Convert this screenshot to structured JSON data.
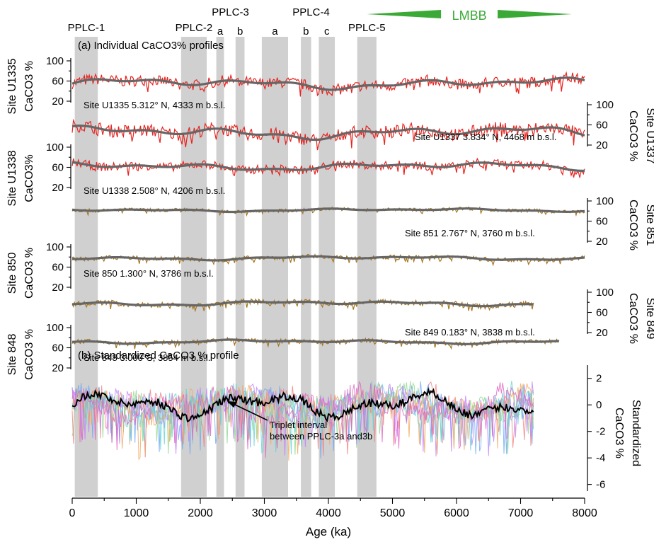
{
  "chart_data": {
    "type": "line",
    "x_axis": {
      "label": "Age (ka)",
      "range": [
        0,
        8000
      ],
      "ticks": [
        0,
        1000,
        2000,
        3000,
        4000,
        5000,
        6000,
        7000,
        8000
      ],
      "tick_labels": [
        "0",
        "1000",
        "2000",
        "3000",
        "4000",
        "5000",
        "6000",
        "7000",
        "8000"
      ]
    },
    "shaded_intervals": [
      {
        "label": "PPLC-1",
        "start": 40,
        "end": 400
      },
      {
        "label": "PPLC-2",
        "start": 1700,
        "end": 2100
      },
      {
        "label": "a",
        "start": 2250,
        "end": 2370
      },
      {
        "label": "b",
        "start": 2550,
        "end": 2690
      },
      {
        "label": "a",
        "start": 2960,
        "end": 3370
      },
      {
        "label": "b",
        "start": 3570,
        "end": 3730
      },
      {
        "label": "c",
        "start": 3850,
        "end": 4100
      },
      {
        "label": "PPLC-5",
        "start": 4450,
        "end": 4750
      }
    ],
    "group_labels": [
      {
        "text": "PPLC-3",
        "center": 2470
      },
      {
        "text": "PPLC-4",
        "center": 3730
      }
    ],
    "lmbb": {
      "label": "LMBB",
      "start": 4600,
      "end": 7800,
      "color": "#3aa935"
    },
    "panel_a_label": "(a) Individual CaCO3% profiles",
    "panel_b_label": "(b) Standardized CaCO3 % profile",
    "series": [
      {
        "name": "Site U1335",
        "axis_title": "Site U1335",
        "axis_unit": "CaCO3 %",
        "axis_side": "left",
        "yticks": [
          "20",
          "60",
          "100"
        ],
        "ylim": [
          20,
          100
        ],
        "color": "#e8231f",
        "smooth_color": "#666666",
        "x_end": 8000,
        "info": "Site U1335 5.312° N, 4333 m b.s.l.",
        "approx_mean": 55,
        "approx_noise": 13
      },
      {
        "name": "Site U1337",
        "axis_title": "Site U1337",
        "axis_unit": "CaCO3 %",
        "axis_side": "right",
        "yticks": [
          "20",
          "60",
          "100"
        ],
        "ylim": [
          20,
          100
        ],
        "color": "#e8231f",
        "smooth_color": "#666666",
        "x_end": 8000,
        "info": "Site U1337 3.834° N, 4468 m b.s.l.",
        "approx_mean": 45,
        "approx_noise": 15
      },
      {
        "name": "Site U1338",
        "axis_title": "Site U1338",
        "axis_unit": "CaCO3%",
        "axis_side": "left",
        "yticks": [
          "20",
          "60",
          "100"
        ],
        "ylim": [
          20,
          100
        ],
        "color": "#e8231f",
        "smooth_color": "#666666",
        "x_end": 8000,
        "info": "Site U1338 2.508° N, 4206 m b.s.l.",
        "approx_mean": 62,
        "approx_noise": 10
      },
      {
        "name": "Site 851",
        "axis_title": "Site 851",
        "axis_unit": "CaCO3 %",
        "axis_side": "right",
        "yticks": [
          "20",
          "60",
          "100"
        ],
        "ylim": [
          20,
          100
        ],
        "color": "#a87620",
        "smooth_color": "#666666",
        "x_end": 8000,
        "info": "Site 851 2.767° N, 3760 m b.s.l.",
        "approx_mean": 82,
        "approx_noise": 4
      },
      {
        "name": "Site 850",
        "axis_title": "Site 850",
        "axis_unit": "CaCO3 %",
        "axis_side": "left",
        "yticks": [
          "20",
          "60",
          "100"
        ],
        "ylim": [
          20,
          100
        ],
        "color": "#a87620",
        "smooth_color": "#666666",
        "x_end": 8000,
        "info": "Site 850 1.300° N, 3786 m b.s.l.",
        "approx_mean": 78,
        "approx_noise": 5
      },
      {
        "name": "Site 849",
        "axis_title": "Site 849",
        "axis_unit": "CaCO3 %",
        "axis_side": "right",
        "yticks": [
          "20",
          "60",
          "100"
        ],
        "ylim": [
          20,
          100
        ],
        "color": "#a87620",
        "smooth_color": "#666666",
        "x_end": 7200,
        "info": "Site 849 0.183° N, 3838 m b.s.l.",
        "approx_mean": 78,
        "approx_noise": 6
      },
      {
        "name": "Site 848",
        "axis_title": "Site 848",
        "axis_unit": "CaCO3 %",
        "axis_side": "left",
        "yticks": [
          "20",
          "60",
          "100"
        ],
        "ylim": [
          20,
          100
        ],
        "color": "#a87620",
        "smooth_color": "#666666",
        "x_end": 7600,
        "info": "Site 848 3.000°S, 3854 m b.s.l.",
        "approx_mean": 72,
        "approx_noise": 5
      }
    ],
    "standardized": {
      "axis_label_line1": "Standardized",
      "axis_label_line2": "CaCO3 %",
      "yticks": [
        "2",
        "0",
        "-2",
        "-4",
        "-6"
      ],
      "ylim": [
        -6.5,
        3
      ],
      "stack_colors": [
        "#f08080",
        "#6fa8f5",
        "#8fd88f",
        "#c080ff",
        "#f2a65a",
        "#5fd4d4",
        "#e060c0"
      ],
      "mean_color": "#000000",
      "x_end": 7200
    },
    "annotation": {
      "line1": "Triplet interval",
      "line2": "between PPLC-3a and3b",
      "target_x": 2470
    }
  }
}
